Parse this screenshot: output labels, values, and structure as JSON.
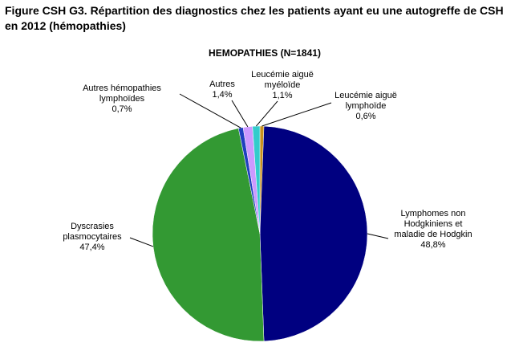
{
  "figure_title": "Figure CSH G3. Répartition des diagnostics chez les patients ayant eu une autogreffe de CSH en 2012 (hémopathies)",
  "chart_data": {
    "type": "pie",
    "title": "HEMOPATHIES (N=1841)",
    "slices": [
      {
        "label": [
          "Leucémie aiguë",
          "lymphoïde"
        ],
        "value": 0.6,
        "value_label": "0,6%",
        "color": "#c8901e"
      },
      {
        "label": [
          "Lymphomes non",
          "Hodgkiniens et",
          "maladie de Hodgkin"
        ],
        "value": 48.8,
        "value_label": "48,8%",
        "color": "#000080"
      },
      {
        "label": [
          "Dyscrasies",
          "plasmocytaires"
        ],
        "value": 47.4,
        "value_label": "47,4%",
        "color": "#339933"
      },
      {
        "label": [
          "Autres hémopathies",
          "lymphoïdes"
        ],
        "value": 0.7,
        "value_label": "0,7%",
        "color": "#1f3fbf"
      },
      {
        "label": [
          "Autres"
        ],
        "value": 1.4,
        "value_label": "1,4%",
        "color": "#cc99ff"
      },
      {
        "label": [
          "Leucémie aiguë",
          "myéloïde"
        ],
        "value": 1.1,
        "value_label": "1,1%",
        "color": "#33cccc"
      }
    ]
  }
}
